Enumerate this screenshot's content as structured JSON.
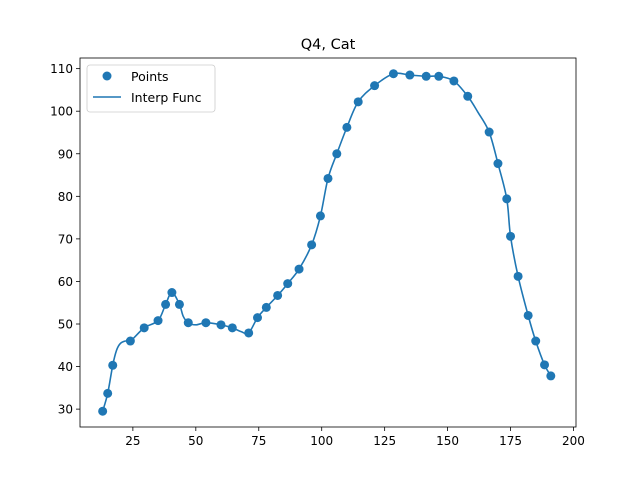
{
  "chart_data": {
    "type": "scatter",
    "title": "Q4, Cat",
    "xlabel": "",
    "ylabel": "",
    "xlim": [
      4.0,
      201.0
    ],
    "ylim": [
      25.8,
      112.5
    ],
    "xticks": [
      25,
      50,
      75,
      100,
      125,
      150,
      175,
      200
    ],
    "yticks": [
      30,
      40,
      50,
      60,
      70,
      80,
      90,
      100,
      110
    ],
    "grid": false,
    "legend_position": "top-left",
    "colors": {
      "series": "#1f77b4"
    },
    "series": [
      {
        "name": "Points",
        "kind": "scatter",
        "x": [
          13,
          15,
          17,
          24,
          29.5,
          35,
          38,
          40.5,
          43.5,
          47,
          54,
          60,
          64.5,
          71,
          74.5,
          78,
          82.5,
          86.5,
          91,
          96,
          99.5,
          102.5,
          106,
          110,
          114.5,
          121,
          128.5,
          135,
          141.5,
          146.5,
          152.5,
          158,
          166.5,
          170,
          173.5,
          175,
          178,
          182,
          185,
          188.5,
          191
        ],
        "y": [
          29.5,
          33.7,
          40.3,
          46.0,
          49.1,
          50.8,
          54.6,
          57.4,
          54.6,
          50.3,
          50.3,
          49.8,
          49.1,
          47.9,
          51.5,
          53.9,
          56.7,
          59.5,
          62.9,
          68.6,
          75.4,
          84.2,
          90.0,
          96.2,
          102.2,
          106.0,
          108.8,
          108.5,
          108.2,
          108.2,
          107.1,
          103.5,
          95.1,
          87.7,
          79.4,
          70.6,
          61.2,
          52.0,
          46.0,
          40.4,
          37.8
        ]
      },
      {
        "name": "Interp Func",
        "kind": "line",
        "x": [
          13,
          15,
          17,
          18.5,
          20,
          22,
          24,
          29.5,
          35,
          38,
          40.5,
          43.5,
          45,
          47,
          50,
          54,
          60,
          64.5,
          68,
          71,
          74.5,
          78,
          82.5,
          86.5,
          91,
          96,
          99.5,
          102.5,
          106,
          110,
          114.5,
          121,
          128.5,
          135,
          141.5,
          146.5,
          152.5,
          158,
          162,
          166.5,
          170,
          173.5,
          175,
          178,
          182,
          185,
          188.5,
          191
        ],
        "y": [
          29.5,
          33.7,
          40.3,
          43.8,
          45.4,
          46.0,
          46.0,
          49.1,
          50.8,
          54.6,
          57.4,
          54.6,
          51.8,
          50.3,
          49.8,
          50.3,
          49.8,
          49.1,
          48.2,
          47.9,
          51.5,
          53.9,
          56.7,
          59.5,
          62.9,
          68.6,
          75.4,
          84.2,
          90.0,
          96.2,
          102.2,
          106.0,
          108.8,
          108.5,
          108.2,
          108.2,
          107.1,
          103.5,
          99.8,
          95.1,
          87.7,
          79.4,
          70.6,
          61.2,
          52.0,
          46.0,
          40.4,
          37.8
        ]
      }
    ]
  }
}
